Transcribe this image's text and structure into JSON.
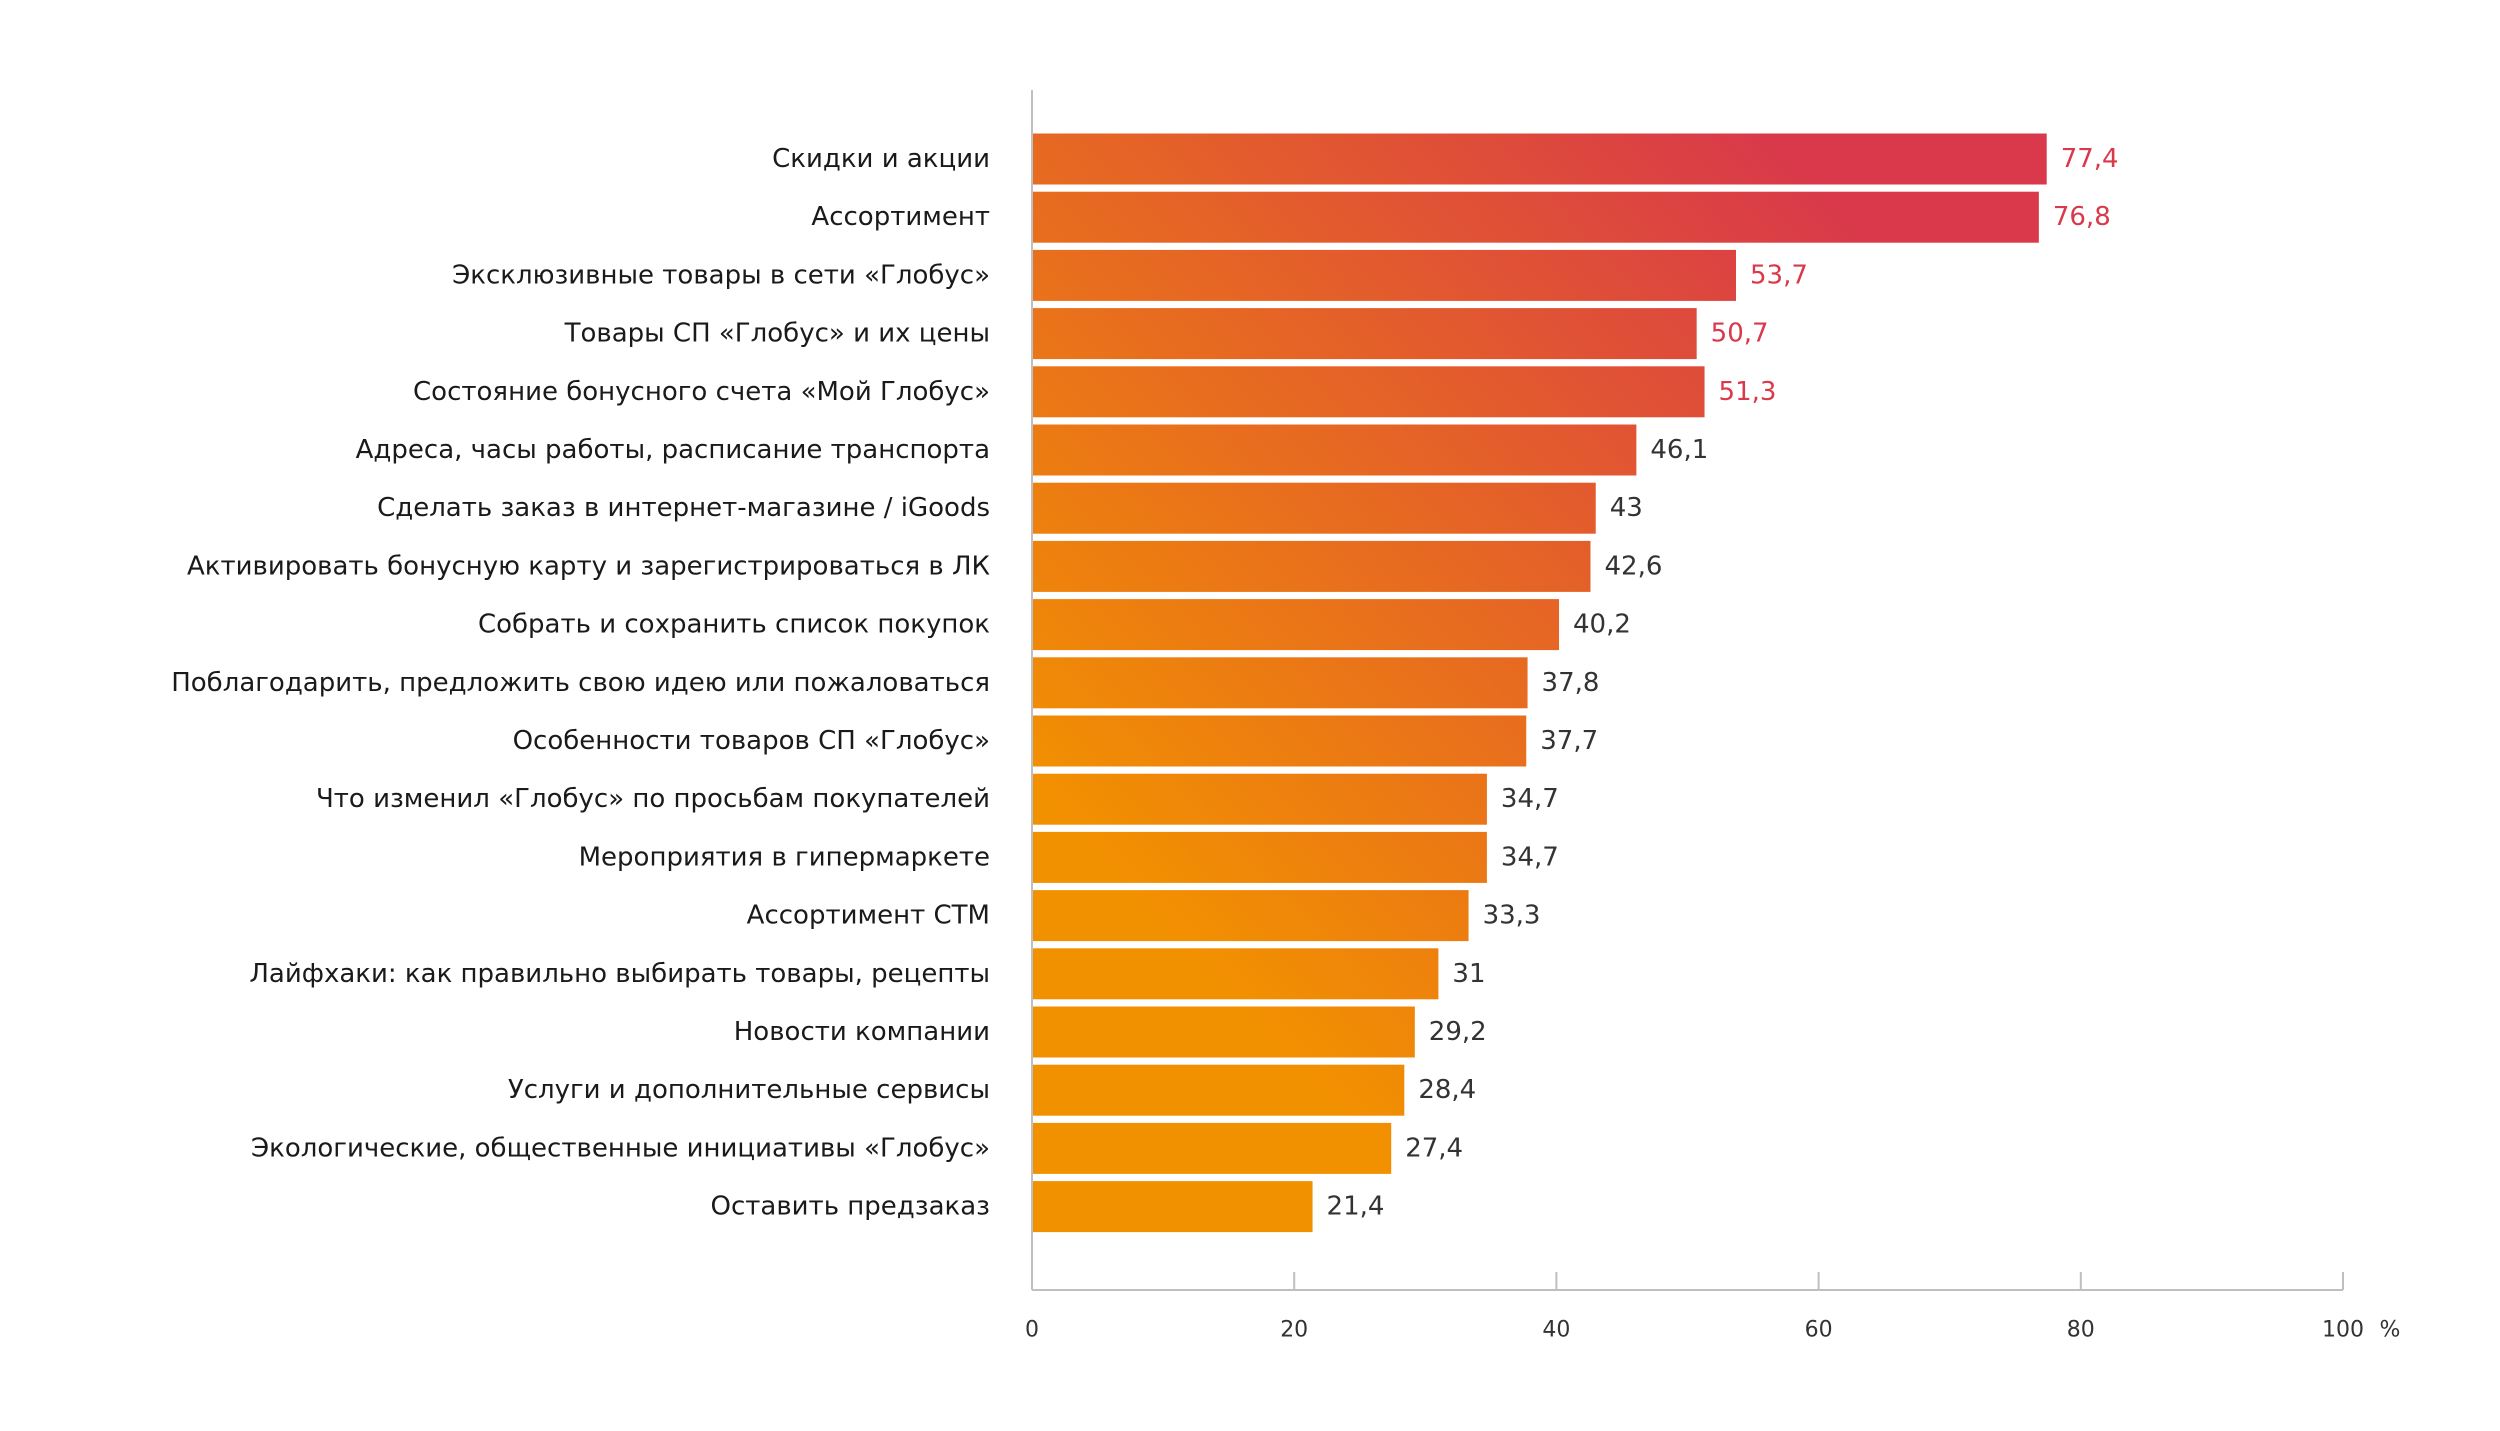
{
  "chart_data": {
    "type": "bar",
    "orientation": "horizontal",
    "categories": [
      "Скидки и акции",
      "Ассортимент",
      "Эксклюзивные товары в сети «Глобус»",
      "Товары СП «Глобус» и их цены",
      "Состояние бонусного счета «Мой Глобус»",
      "Адреса, часы работы, расписание транспорта",
      "Сделать заказ в интернет-магазине  /  iGoods",
      "Активировать бонусную карту и зарегистрироваться в ЛК",
      "Собрать и сохранить список покупок",
      "Поблагодарить, предложить свою идею или пожаловаться",
      "Особенности товаров СП «Глобус»",
      "Что изменил «Глобус» по просьбам покупателей",
      "Мероприятия в гипермаркете",
      "Ассортимент СТМ",
      "Лайфхаки: как правильно выбирать товары, рецепты",
      "Новости компании",
      "Услуги и дополнительные сервисы",
      "Экологические, общественные инициативы «Глобус»",
      "Оставить предзаказ"
    ],
    "values": [
      77.4,
      76.8,
      53.7,
      50.7,
      51.3,
      46.1,
      43,
      42.6,
      40.2,
      37.8,
      37.7,
      34.7,
      34.7,
      33.3,
      31,
      29.2,
      28.4,
      27.4,
      21.4
    ],
    "value_labels": [
      "77,4",
      "76,8",
      "53,7",
      "50,7",
      "51,3",
      "46,1",
      "43",
      "42,6",
      "40,2",
      "37,8",
      "37,7",
      "34,7",
      "34,7",
      "33,3",
      "31",
      "29,2",
      "28,4",
      "27,4",
      "21,4"
    ],
    "highlighted_count": 5,
    "title": "",
    "xlabel": "",
    "ylabel": "",
    "xlim": [
      0,
      100
    ],
    "xticks": [
      0,
      20,
      40,
      60,
      80,
      100
    ],
    "xtick_labels": [
      "0",
      "20",
      "40",
      "60",
      "80",
      "100"
    ],
    "unit": "%",
    "grid": false,
    "legend": "none",
    "colors": {
      "gradient_low": "#f29100",
      "gradient_high": "#d9394a",
      "highlight_label": "#d9394a",
      "normal_label": "#333333",
      "axis": "#bfbfbf"
    }
  }
}
